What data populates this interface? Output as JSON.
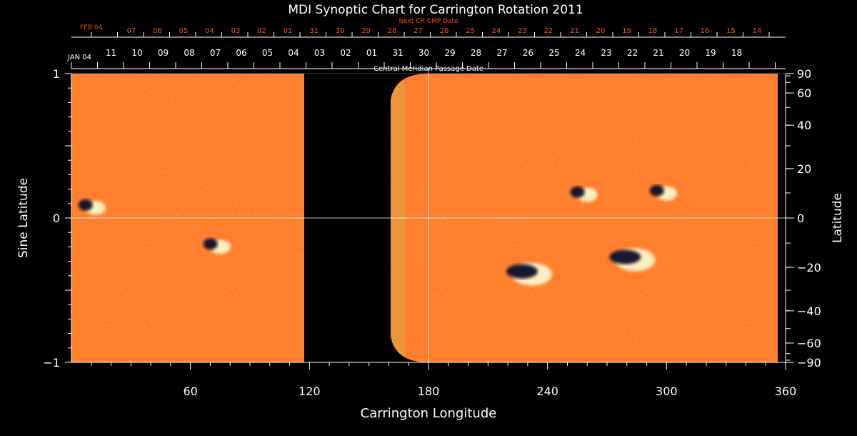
{
  "chart_data": {
    "type": "heatmap",
    "title": "MDI Synoptic Chart for Carrington Rotation 2011",
    "xlabel": "Carrington Longitude",
    "ylabel_left": "Sine Latitude",
    "ylabel_right": "Latitude",
    "xlim": [
      0,
      360
    ],
    "ylim": [
      -1,
      1
    ],
    "x_ticks": [
      60,
      120,
      180,
      240,
      300,
      360
    ],
    "y_ticks_left": [
      {
        "value": 1,
        "label": "1"
      },
      {
        "value": 0,
        "label": "0"
      },
      {
        "value": -1,
        "label": "−1"
      }
    ],
    "y_ticks_right": [
      90,
      60,
      40,
      20,
      0,
      -20,
      -40,
      -60,
      -90
    ],
    "y_ticks_right_labels": [
      "90",
      "60",
      "40",
      "20",
      "0",
      "−20",
      "−40",
      "−60",
      "−90"
    ],
    "central_meridian_label": "Central Meridian Passage Date",
    "next_cr_label": "Next CR CMP Date",
    "cmp_dates_start": "JAN 04",
    "cmp_dates": [
      "11",
      "10",
      "09",
      "08",
      "07",
      "06",
      "05",
      "04",
      "03",
      "02",
      "01",
      "31",
      "30",
      "29",
      "28",
      "27",
      "26",
      "25",
      "24",
      "23",
      "22",
      "21",
      "20",
      "19",
      "18"
    ],
    "next_cr_start": "FEB 04",
    "next_cr_dates": [
      "07",
      "06",
      "05",
      "04",
      "03",
      "02",
      "01",
      "31",
      "30",
      "29",
      "28",
      "27",
      "26",
      "25",
      "24",
      "23",
      "22",
      "21",
      "20",
      "19",
      "18",
      "17",
      "16",
      "15",
      "14"
    ],
    "data_gap_longitude": [
      118,
      165
    ],
    "active_regions": [
      {
        "lon": 10,
        "sinlat": 0.08,
        "polarity": "mixed"
      },
      {
        "lon": 73,
        "sinlat": -0.19,
        "polarity": "mixed"
      },
      {
        "lon": 258,
        "sinlat": 0.17,
        "polarity": "mixed"
      },
      {
        "lon": 298,
        "sinlat": 0.18,
        "polarity": "mixed"
      },
      {
        "lon": 230,
        "sinlat": -0.38,
        "polarity": "mixed"
      },
      {
        "lon": 282,
        "sinlat": -0.28,
        "polarity": "mixed"
      }
    ],
    "colors": {
      "background": "#000000",
      "field": "#ff6a1a",
      "positive": "#fff4c8",
      "negative": "#10102a",
      "axis": "#ffffff",
      "next_cr": "#ff4a1a"
    }
  }
}
